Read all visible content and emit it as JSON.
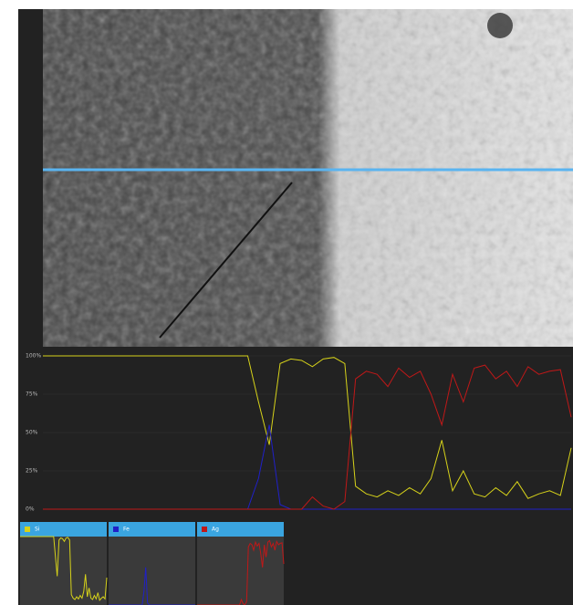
{
  "chart_data": {
    "type": "line",
    "ylim": [
      0,
      100
    ],
    "yticks": [
      {
        "value": 0,
        "label": "0%"
      },
      {
        "value": 25,
        "label": "25%"
      },
      {
        "value": 50,
        "label": "50%"
      },
      {
        "value": 75,
        "label": "75%"
      },
      {
        "value": 100,
        "label": "100%"
      }
    ],
    "series": [
      {
        "name": "Si",
        "color": "#d6d21a",
        "values": [
          100,
          100,
          100,
          100,
          100,
          100,
          100,
          100,
          100,
          100,
          100,
          100,
          100,
          100,
          100,
          100,
          100,
          100,
          100,
          100,
          70,
          42,
          95,
          98,
          97,
          93,
          98,
          99,
          95,
          15,
          10,
          8,
          12,
          9,
          14,
          10,
          20,
          45,
          12,
          25,
          10,
          8,
          14,
          9,
          18,
          7,
          10,
          12,
          9,
          40
        ]
      },
      {
        "name": "Fe",
        "color": "#2020c8",
        "values": [
          0,
          0,
          0,
          0,
          0,
          0,
          0,
          0,
          0,
          0,
          0,
          0,
          0,
          0,
          0,
          0,
          0,
          0,
          0,
          0,
          20,
          55,
          3,
          0,
          0,
          0,
          0,
          0,
          0,
          0,
          0,
          0,
          0,
          0,
          0,
          0,
          0,
          0,
          0,
          0,
          0,
          0,
          0,
          0,
          0,
          0,
          0,
          0,
          0,
          0
        ]
      },
      {
        "name": "Ag",
        "color": "#c01818",
        "values": [
          0,
          0,
          0,
          0,
          0,
          0,
          0,
          0,
          0,
          0,
          0,
          0,
          0,
          0,
          0,
          0,
          0,
          0,
          0,
          0,
          0,
          0,
          0,
          0,
          0,
          8,
          2,
          0,
          5,
          85,
          90,
          88,
          80,
          92,
          86,
          90,
          75,
          55,
          88,
          70,
          92,
          94,
          85,
          90,
          80,
          93,
          88,
          90,
          91,
          60
        ]
      }
    ]
  }
}
